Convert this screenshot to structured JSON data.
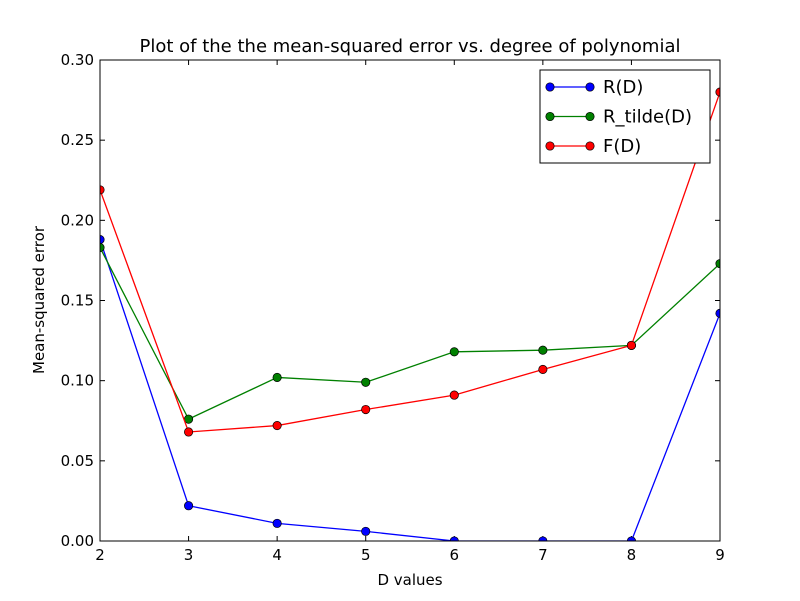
{
  "chart_data": {
    "type": "line",
    "title": "Plot of the the mean-squared error vs. degree of polynomial",
    "xlabel": "D values",
    "ylabel": "Mean-squared error",
    "x": [
      2,
      3,
      4,
      5,
      6,
      7,
      8,
      9
    ],
    "xlim": [
      2,
      9
    ],
    "ylim": [
      0,
      0.3
    ],
    "xticks": [
      "2",
      "3",
      "4",
      "5",
      "6",
      "7",
      "8",
      "9"
    ],
    "yticks": [
      "0.00",
      "0.05",
      "0.10",
      "0.15",
      "0.20",
      "0.25",
      "0.30"
    ],
    "grid": false,
    "legend_position": "top-right",
    "series": [
      {
        "name": "R(D)",
        "color": "#0000ff",
        "values": [
          0.188,
          0.022,
          0.011,
          0.006,
          0.0,
          0.0,
          0.0,
          0.142
        ]
      },
      {
        "name": "R_tilde(D)",
        "color": "#008000",
        "values": [
          0.183,
          0.076,
          0.102,
          0.099,
          0.118,
          0.119,
          0.122,
          0.173
        ]
      },
      {
        "name": "F(D)",
        "color": "#ff0000",
        "values": [
          0.219,
          0.068,
          0.072,
          0.082,
          0.091,
          0.107,
          0.122,
          0.28
        ]
      }
    ]
  }
}
